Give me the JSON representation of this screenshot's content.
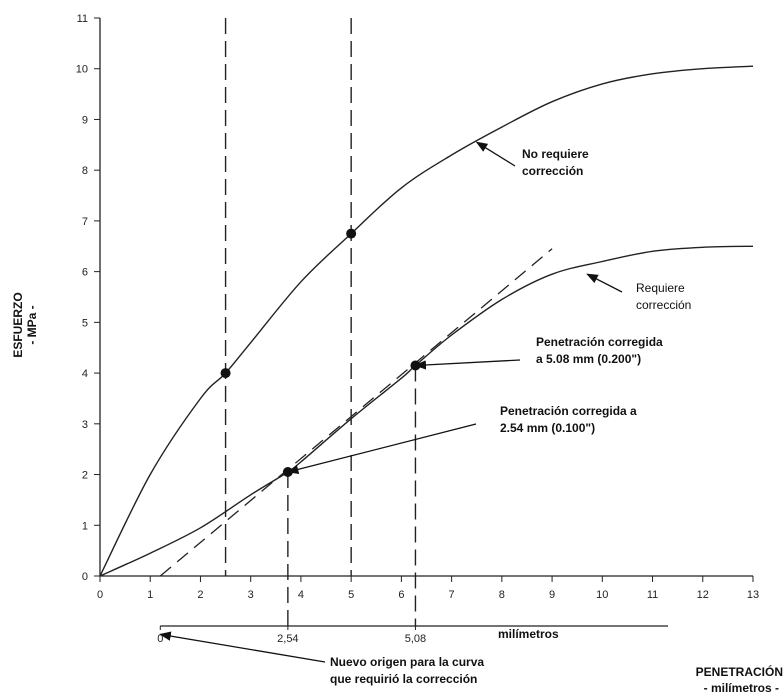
{
  "chart_data": {
    "type": "line",
    "xlabel_line1": "PENETRACIÓN",
    "xlabel_line2": "- milímetros -",
    "ylabel_line1": "ESFUERZO",
    "ylabel_line2": "- MPa -",
    "xlim": [
      0,
      13
    ],
    "ylim": [
      0,
      11
    ],
    "x_ticks": [
      "0",
      "1",
      "2",
      "3",
      "4",
      "5",
      "6",
      "7",
      "8",
      "9",
      "10",
      "11",
      "12",
      "13"
    ],
    "y_ticks": [
      "0",
      "1",
      "2",
      "3",
      "4",
      "5",
      "6",
      "7",
      "8",
      "9",
      "10",
      "11"
    ],
    "secondary_axis": {
      "ticks": [
        {
          "x": 1.2,
          "label": "0"
        },
        {
          "x": 3.74,
          "label": "2,54"
        },
        {
          "x": 6.28,
          "label": "5,08"
        }
      ],
      "unit_label": "milímetros"
    },
    "series": [
      {
        "x": [
          0,
          1,
          2,
          2.5,
          3,
          4,
          5,
          6,
          7,
          8,
          9,
          10,
          11,
          12,
          13
        ],
        "y": [
          0,
          2.0,
          3.5,
          4.0,
          4.6,
          5.8,
          6.75,
          7.65,
          8.3,
          8.85,
          9.35,
          9.7,
          9.9,
          10.0,
          10.05
        ]
      },
      {
        "x": [
          0,
          1,
          2,
          3,
          3.74,
          4,
          5,
          6,
          6.28,
          7,
          8,
          9,
          10,
          11,
          12,
          13
        ],
        "y": [
          0,
          0.45,
          0.95,
          1.6,
          2.05,
          2.25,
          3.1,
          3.9,
          4.15,
          4.75,
          5.45,
          5.95,
          6.2,
          6.4,
          6.48,
          6.5
        ]
      }
    ],
    "tangent_line": {
      "x": [
        1.2,
        9.0
      ],
      "y": [
        0.0,
        6.45
      ]
    },
    "vertical_dashed_lines": [
      {
        "x": 2.5,
        "y_min": 0,
        "y_max": 11
      },
      {
        "x": 5.0,
        "y_min": 0,
        "y_max": 11
      },
      {
        "x": 3.74,
        "y_min": -1.0,
        "y_max": 2.05
      },
      {
        "x": 6.28,
        "y_min": -1.0,
        "y_max": 4.15
      }
    ],
    "points": [
      {
        "x": 2.5,
        "y": 4.0
      },
      {
        "x": 5.0,
        "y": 6.75
      },
      {
        "x": 3.74,
        "y": 2.05
      },
      {
        "x": 6.28,
        "y": 4.15
      }
    ],
    "annotations": [
      {
        "lines": [
          "No requiere",
          "corrección"
        ],
        "arrow_to": {
          "x": 7.5,
          "y": 8.55
        },
        "bold": true
      },
      {
        "lines": [
          "Requiere",
          "corrección"
        ],
        "arrow_to": {
          "x": 9.7,
          "y": 5.95
        },
        "bold": false
      },
      {
        "lines": [
          "Penetración corregida",
          "a 5.08 mm (0.200\")"
        ],
        "arrow_to": {
          "x": 6.28,
          "y": 4.15
        },
        "bold": true
      },
      {
        "lines": [
          "Penetración corregida a",
          "2.54 mm (0.100\")"
        ],
        "arrow_to": {
          "x": 3.74,
          "y": 2.05
        },
        "bold": true
      },
      {
        "lines": [
          "Nuevo origen para la curva",
          "que requirió la corrección"
        ],
        "arrow_to": {
          "x": 1.2,
          "y": -1.15
        },
        "bold": true
      }
    ]
  }
}
